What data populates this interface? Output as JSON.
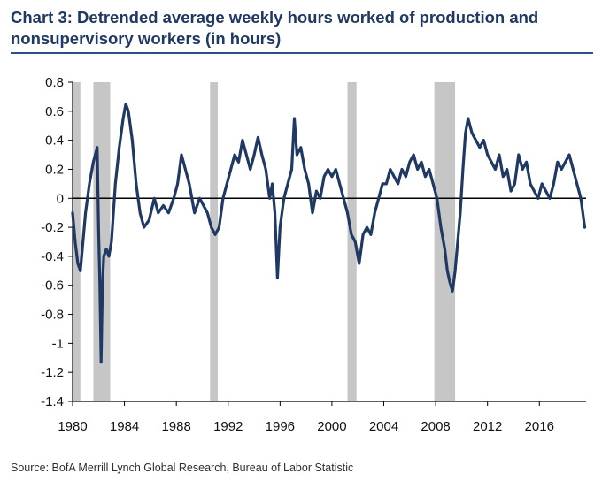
{
  "header": {
    "title": "Chart 3: Detrended average weekly hours worked of production and nonsupervisory workers (in hours)"
  },
  "footer": {
    "source": "Source:  BofA Merrill Lynch Global Research, Bureau of Labor Statistic"
  },
  "colors": {
    "line": "#1f3864",
    "recession": "#c6c6c6",
    "title": "#1f3864",
    "rule": "#2b4f8a"
  },
  "chart_data": {
    "type": "line",
    "title": "Chart 3: Detrended average weekly hours worked of production and nonsupervisory workers (in hours)",
    "xlabel": "",
    "ylabel": "",
    "xlim": [
      1980,
      2019.6
    ],
    "ylim": [
      -1.4,
      0.8
    ],
    "grid": false,
    "legend": "none",
    "x_ticks": [
      "1980",
      "1984",
      "1988",
      "1992",
      "1996",
      "2000",
      "2004",
      "2008",
      "2012",
      "2016"
    ],
    "y_ticks": [
      "0.8",
      "0.6",
      "0.4",
      "0.2",
      "0",
      "-0.2",
      "-0.4",
      "-0.6",
      "-0.8",
      "-1",
      "-1.2",
      "-1.4"
    ],
    "recessions": [
      [
        1980.0,
        1980.6
      ],
      [
        1981.6,
        1982.9
      ],
      [
        1990.6,
        1991.2
      ],
      [
        2001.2,
        2001.9
      ],
      [
        2007.9,
        2009.5
      ]
    ],
    "series": [
      {
        "values": [
          [
            1980.0,
            -0.1
          ],
          [
            1980.2,
            -0.3
          ],
          [
            1980.4,
            -0.45
          ],
          [
            1980.6,
            -0.5
          ],
          [
            1980.8,
            -0.3
          ],
          [
            1981.0,
            -0.1
          ],
          [
            1981.3,
            0.1
          ],
          [
            1981.6,
            0.25
          ],
          [
            1981.9,
            0.35
          ],
          [
            1982.0,
            -0.2
          ],
          [
            1982.1,
            -0.6
          ],
          [
            1982.2,
            -1.13
          ],
          [
            1982.3,
            -0.6
          ],
          [
            1982.4,
            -0.4
          ],
          [
            1982.6,
            -0.35
          ],
          [
            1982.8,
            -0.4
          ],
          [
            1983.0,
            -0.3
          ],
          [
            1983.3,
            0.1
          ],
          [
            1983.6,
            0.35
          ],
          [
            1983.9,
            0.55
          ],
          [
            1984.1,
            0.65
          ],
          [
            1984.3,
            0.6
          ],
          [
            1984.6,
            0.4
          ],
          [
            1984.9,
            0.1
          ],
          [
            1985.2,
            -0.1
          ],
          [
            1985.5,
            -0.2
          ],
          [
            1985.9,
            -0.15
          ],
          [
            1986.3,
            0.0
          ],
          [
            1986.6,
            -0.1
          ],
          [
            1987.0,
            -0.05
          ],
          [
            1987.4,
            -0.1
          ],
          [
            1987.8,
            0.0
          ],
          [
            1988.1,
            0.1
          ],
          [
            1988.4,
            0.3
          ],
          [
            1988.7,
            0.2
          ],
          [
            1989.0,
            0.1
          ],
          [
            1989.4,
            -0.1
          ],
          [
            1989.8,
            0.0
          ],
          [
            1990.1,
            -0.05
          ],
          [
            1990.4,
            -0.1
          ],
          [
            1990.7,
            -0.2
          ],
          [
            1991.0,
            -0.25
          ],
          [
            1991.3,
            -0.2
          ],
          [
            1991.6,
            0.0
          ],
          [
            1991.9,
            0.1
          ],
          [
            1992.2,
            0.2
          ],
          [
            1992.5,
            0.3
          ],
          [
            1992.8,
            0.25
          ],
          [
            1993.1,
            0.4
          ],
          [
            1993.4,
            0.3
          ],
          [
            1993.7,
            0.2
          ],
          [
            1994.0,
            0.3
          ],
          [
            1994.3,
            0.42
          ],
          [
            1994.6,
            0.3
          ],
          [
            1994.9,
            0.2
          ],
          [
            1995.2,
            0.0
          ],
          [
            1995.4,
            0.1
          ],
          [
            1995.6,
            -0.1
          ],
          [
            1995.8,
            -0.55
          ],
          [
            1996.0,
            -0.2
          ],
          [
            1996.3,
            0.0
          ],
          [
            1996.6,
            0.1
          ],
          [
            1996.9,
            0.2
          ],
          [
            1997.1,
            0.55
          ],
          [
            1997.3,
            0.3
          ],
          [
            1997.6,
            0.35
          ],
          [
            1997.9,
            0.2
          ],
          [
            1998.2,
            0.1
          ],
          [
            1998.5,
            -0.1
          ],
          [
            1998.8,
            0.05
          ],
          [
            1999.1,
            0.0
          ],
          [
            1999.4,
            0.15
          ],
          [
            1999.7,
            0.2
          ],
          [
            2000.0,
            0.15
          ],
          [
            2000.3,
            0.2
          ],
          [
            2000.6,
            0.1
          ],
          [
            2000.9,
            0.0
          ],
          [
            2001.2,
            -0.1
          ],
          [
            2001.5,
            -0.25
          ],
          [
            2001.8,
            -0.3
          ],
          [
            2002.1,
            -0.45
          ],
          [
            2002.4,
            -0.25
          ],
          [
            2002.7,
            -0.2
          ],
          [
            2003.0,
            -0.25
          ],
          [
            2003.3,
            -0.1
          ],
          [
            2003.6,
            0.0
          ],
          [
            2003.9,
            0.1
          ],
          [
            2004.2,
            0.1
          ],
          [
            2004.5,
            0.2
          ],
          [
            2004.8,
            0.15
          ],
          [
            2005.1,
            0.1
          ],
          [
            2005.4,
            0.2
          ],
          [
            2005.7,
            0.15
          ],
          [
            2006.0,
            0.25
          ],
          [
            2006.3,
            0.3
          ],
          [
            2006.6,
            0.2
          ],
          [
            2006.9,
            0.25
          ],
          [
            2007.2,
            0.15
          ],
          [
            2007.5,
            0.2
          ],
          [
            2007.8,
            0.1
          ],
          [
            2008.1,
            0.0
          ],
          [
            2008.4,
            -0.2
          ],
          [
            2008.7,
            -0.35
          ],
          [
            2008.9,
            -0.5
          ],
          [
            2009.1,
            -0.58
          ],
          [
            2009.3,
            -0.64
          ],
          [
            2009.5,
            -0.5
          ],
          [
            2009.7,
            -0.3
          ],
          [
            2009.9,
            -0.1
          ],
          [
            2010.1,
            0.2
          ],
          [
            2010.3,
            0.45
          ],
          [
            2010.5,
            0.55
          ],
          [
            2010.8,
            0.45
          ],
          [
            2011.1,
            0.4
          ],
          [
            2011.4,
            0.35
          ],
          [
            2011.7,
            0.4
          ],
          [
            2012.0,
            0.3
          ],
          [
            2012.3,
            0.25
          ],
          [
            2012.6,
            0.2
          ],
          [
            2012.9,
            0.3
          ],
          [
            2013.2,
            0.15
          ],
          [
            2013.5,
            0.2
          ],
          [
            2013.8,
            0.05
          ],
          [
            2014.1,
            0.1
          ],
          [
            2014.4,
            0.3
          ],
          [
            2014.7,
            0.2
          ],
          [
            2015.0,
            0.25
          ],
          [
            2015.3,
            0.1
          ],
          [
            2015.6,
            0.05
          ],
          [
            2015.9,
            0.0
          ],
          [
            2016.2,
            0.1
          ],
          [
            2016.5,
            0.05
          ],
          [
            2016.8,
            0.0
          ],
          [
            2017.1,
            0.1
          ],
          [
            2017.4,
            0.25
          ],
          [
            2017.7,
            0.2
          ],
          [
            2018.0,
            0.25
          ],
          [
            2018.3,
            0.3
          ],
          [
            2018.6,
            0.2
          ],
          [
            2018.9,
            0.1
          ],
          [
            2019.2,
            0.0
          ],
          [
            2019.5,
            -0.2
          ]
        ]
      }
    ]
  }
}
